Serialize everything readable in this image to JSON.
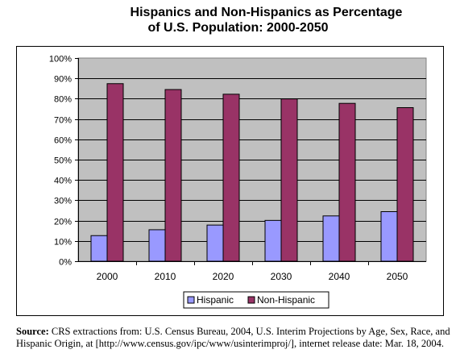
{
  "title_line1": "Hispanics and Non-Hispanics as Percentage",
  "title_line2": "of U.S. Population: 2000-2050",
  "source_label": "Source:",
  "source_text": "CRS extractions from: U.S. Census Bureau, 2004, U.S. Interim Projections by Age, Sex, Race, and Hispanic Origin, at [http://www.census.gov/ipc/www/usinterimproj/], internet release date: Mar. 18, 2004.",
  "colors": {
    "plot_background": "#c0c0c0",
    "hispanic": "#9999ff",
    "non_hispanic": "#993366"
  },
  "chart_data": {
    "type": "bar",
    "categories": [
      "2000",
      "2010",
      "2020",
      "2030",
      "2040",
      "2050"
    ],
    "series": [
      {
        "name": "Hispanic",
        "values": [
          12.6,
          15.5,
          17.8,
          20.1,
          22.3,
          24.4
        ]
      },
      {
        "name": "Non-Hispanic",
        "values": [
          87.4,
          84.5,
          82.2,
          79.9,
          77.7,
          75.6
        ]
      }
    ],
    "ylim": [
      0,
      100
    ],
    "yticks": [
      "0%",
      "10%",
      "20%",
      "30%",
      "40%",
      "50%",
      "60%",
      "70%",
      "80%",
      "90%",
      "100%"
    ],
    "grid": true,
    "legend_position": "bottom"
  }
}
